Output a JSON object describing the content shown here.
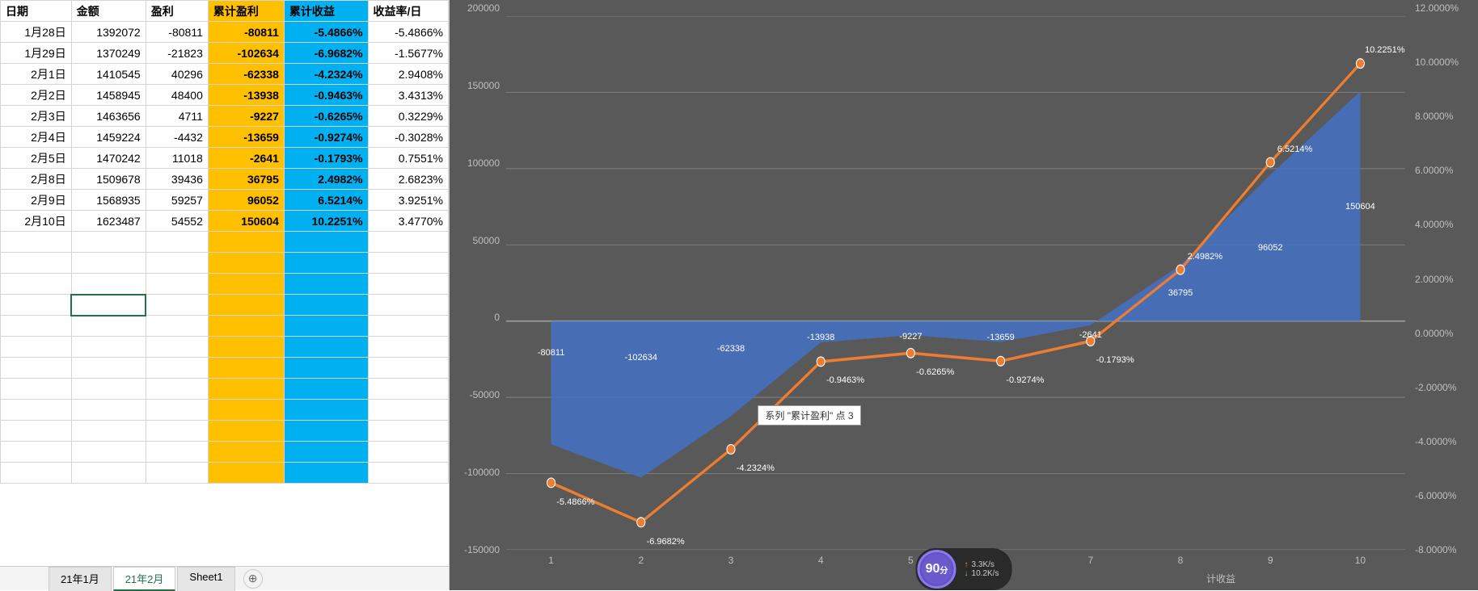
{
  "columns": [
    "日期",
    "金额",
    "盈利",
    "累计盈利",
    "累计收益",
    "收益率/日"
  ],
  "rows": [
    [
      "1月28日",
      "1392072",
      "-80811",
      "-80811",
      "-5.4866%",
      "-5.4866%"
    ],
    [
      "1月29日",
      "1370249",
      "-21823",
      "-102634",
      "-6.9682%",
      "-1.5677%"
    ],
    [
      "2月1日",
      "1410545",
      "40296",
      "-62338",
      "-4.2324%",
      "2.9408%"
    ],
    [
      "2月2日",
      "1458945",
      "48400",
      "-13938",
      "-0.9463%",
      "3.4313%"
    ],
    [
      "2月3日",
      "1463656",
      "4711",
      "-9227",
      "-0.6265%",
      "0.3229%"
    ],
    [
      "2月4日",
      "1459224",
      "-4432",
      "-13659",
      "-0.9274%",
      "-0.3028%"
    ],
    [
      "2月5日",
      "1470242",
      "11018",
      "-2641",
      "-0.1793%",
      "0.7551%"
    ],
    [
      "2月8日",
      "1509678",
      "39436",
      "36795",
      "2.4982%",
      "2.6823%"
    ],
    [
      "2月9日",
      "1568935",
      "59257",
      "96052",
      "6.5214%",
      "3.9251%"
    ],
    [
      "2月10日",
      "1623487",
      "54552",
      "150604",
      "10.2251%",
      "3.4770%"
    ]
  ],
  "empty_rows": 12,
  "sheet_tabs": [
    "21年1月",
    "21年2月",
    "Sheet1"
  ],
  "active_sheet": 1,
  "chart": {
    "type": "combo",
    "background_color": "#595959",
    "text_color": "#d9d9d9",
    "x_categories": [
      "1",
      "2",
      "3",
      "4",
      "5",
      "6",
      "7",
      "8",
      "9",
      "10"
    ],
    "area_series_name": "累计盈利",
    "area_series": [
      -80811,
      -102634,
      -62338,
      -13938,
      -9227,
      -13659,
      -2641,
      36795,
      96052,
      150604
    ],
    "area_labels": [
      "-80811",
      "-102634",
      "-62338",
      "-13938",
      "-9227",
      "-13659",
      "-2641",
      "36795",
      "96052",
      "150604"
    ],
    "area_color": "#4472c4",
    "line_series_name": "累计收益",
    "line_series": [
      -5.4866,
      -6.9682,
      -4.2324,
      -0.9463,
      -0.6265,
      -0.9274,
      -0.1793,
      2.4982,
      6.5214,
      10.2251
    ],
    "line_labels": [
      "-5.4866%",
      "-6.9682%",
      "-4.2324%",
      "-0.9463%",
      "-0.6265%",
      "-0.9274%",
      "-0.1793%",
      "2.4982%",
      "6.5214%",
      "10.2251%"
    ],
    "line_color": "#ed7d31",
    "marker_color": "#ed7d31",
    "y_left_min": -150000,
    "y_left_max": 200000,
    "y_left_ticks": [
      -150000,
      -100000,
      -50000,
      0,
      50000,
      100000,
      150000,
      200000
    ],
    "y_right_min": -8.0,
    "y_right_max": 12.0,
    "y_right_ticks": [
      "-8.0000%",
      "-6.0000%",
      "-4.0000%",
      "-2.0000%",
      "0.0000%",
      "2.0000%",
      "4.0000%",
      "6.0000%",
      "8.0000%",
      "10.0000%",
      "12.0000%"
    ],
    "y_right_tick_values": [
      -8,
      -6,
      -4,
      -2,
      0,
      2,
      4,
      6,
      8,
      10,
      12
    ],
    "tooltip": "系列 \"累计盈利\" 点 3",
    "tooltip_point_index": 2,
    "legend_partial": "计收益",
    "grid_color": "#7a7a7a"
  },
  "widget": {
    "gauge_value": "90",
    "gauge_unit": "分",
    "upload_speed": "3.3K/s",
    "download_speed": "10.2K/s"
  }
}
